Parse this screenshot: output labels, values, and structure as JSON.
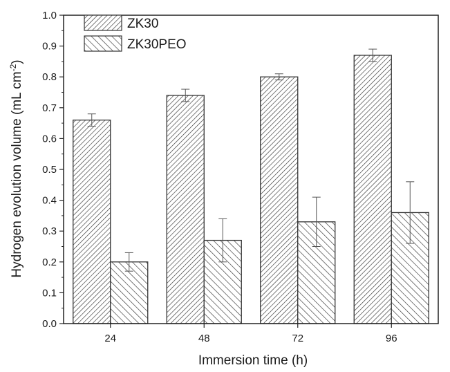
{
  "chart_data": {
    "type": "bar",
    "title": "",
    "xlabel": "Immersion time (h)",
    "ylabel": "Hydrogen evolution volume (mL cm",
    "ylabel_superscript": "-2",
    "ylabel_suffix": ")",
    "categories": [
      "24",
      "48",
      "72",
      "96"
    ],
    "ylim": [
      0,
      1.0
    ],
    "yticks": [
      "0.0",
      "0.1",
      "0.2",
      "0.3",
      "0.4",
      "0.5",
      "0.6",
      "0.7",
      "0.8",
      "0.9",
      "1.0"
    ],
    "grid": false,
    "legend_position": "top-left",
    "series": [
      {
        "name": "ZK30",
        "values": [
          0.66,
          0.74,
          0.8,
          0.87
        ],
        "errors": [
          0.02,
          0.02,
          0.01,
          0.02
        ],
        "hatch": "forward-diagonal-dense"
      },
      {
        "name": "ZK30PEO",
        "values": [
          0.2,
          0.27,
          0.33,
          0.36
        ],
        "errors": [
          0.03,
          0.07,
          0.08,
          0.1
        ],
        "hatch": "backward-diagonal"
      }
    ]
  }
}
